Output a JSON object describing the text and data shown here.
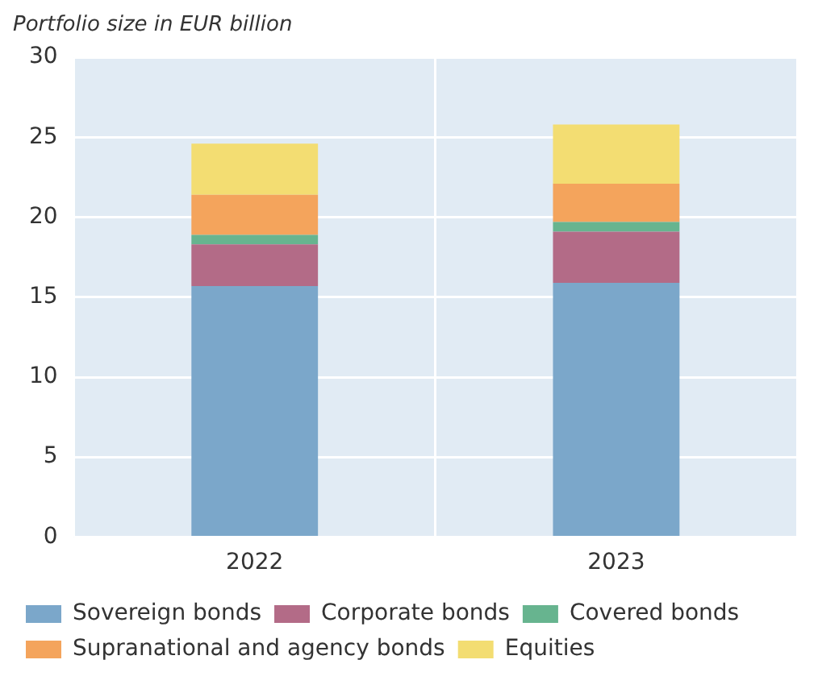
{
  "chart_data": {
    "type": "bar",
    "ylabel": "Portfolio size in EUR billion",
    "categories": [
      "2022",
      "2023"
    ],
    "stacked": true,
    "series": [
      {
        "name": "Sovereign bonds",
        "color": "#7ba7ca",
        "values": [
          15.7,
          15.9
        ]
      },
      {
        "name": "Corporate bonds",
        "color": "#b36b87",
        "values": [
          2.6,
          3.2
        ]
      },
      {
        "name": "Covered bonds",
        "color": "#67b48f",
        "values": [
          0.6,
          0.6
        ]
      },
      {
        "name": "Supranational and agency bonds",
        "color": "#f4a45c",
        "values": [
          2.5,
          2.4
        ]
      },
      {
        "name": "Equities",
        "color": "#f3dd72",
        "values": [
          3.2,
          3.7
        ]
      }
    ],
    "ylim": [
      0,
      30
    ],
    "yticks": [
      0,
      5,
      10,
      15,
      20,
      25,
      30
    ],
    "grid": true,
    "legend": "bottom"
  }
}
